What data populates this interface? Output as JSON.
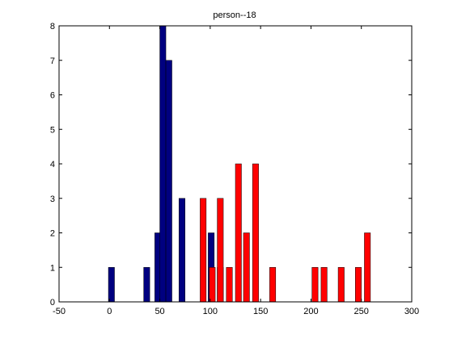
{
  "chart_data": {
    "type": "bar",
    "title": "person--18",
    "xlabel": "",
    "ylabel": "",
    "xlim": [
      -50,
      300
    ],
    "ylim": [
      0,
      8
    ],
    "xticks": [
      -50,
      0,
      50,
      100,
      150,
      200,
      250,
      300
    ],
    "yticks": [
      0,
      1,
      2,
      3,
      4,
      5,
      6,
      7,
      8
    ],
    "xtick_labels": [
      "-50",
      "0",
      "50",
      "100",
      "150",
      "200",
      "250",
      "300"
    ],
    "ytick_labels": [
      "0",
      "1",
      "2",
      "3",
      "4",
      "5",
      "6",
      "7",
      "8"
    ],
    "grid": false,
    "bar_width": 6,
    "series": [
      {
        "color": "#000080",
        "points": [
          {
            "x": 2,
            "y": 1
          },
          {
            "x": 37,
            "y": 1
          },
          {
            "x": 48,
            "y": 2
          },
          {
            "x": 53,
            "y": 8
          },
          {
            "x": 59,
            "y": 7
          },
          {
            "x": 72,
            "y": 3
          },
          {
            "x": 101,
            "y": 2
          },
          {
            "x": 110,
            "y": 1
          }
        ]
      },
      {
        "color": "#ff0000",
        "points": [
          {
            "x": 93,
            "y": 3
          },
          {
            "x": 102,
            "y": 1
          },
          {
            "x": 110,
            "y": 3
          },
          {
            "x": 119,
            "y": 1
          },
          {
            "x": 128,
            "y": 4
          },
          {
            "x": 136,
            "y": 2
          },
          {
            "x": 145,
            "y": 4
          },
          {
            "x": 162,
            "y": 1
          },
          {
            "x": 204,
            "y": 1
          },
          {
            "x": 213,
            "y": 1
          },
          {
            "x": 230,
            "y": 1
          },
          {
            "x": 247,
            "y": 1
          },
          {
            "x": 256,
            "y": 2
          }
        ]
      }
    ]
  }
}
